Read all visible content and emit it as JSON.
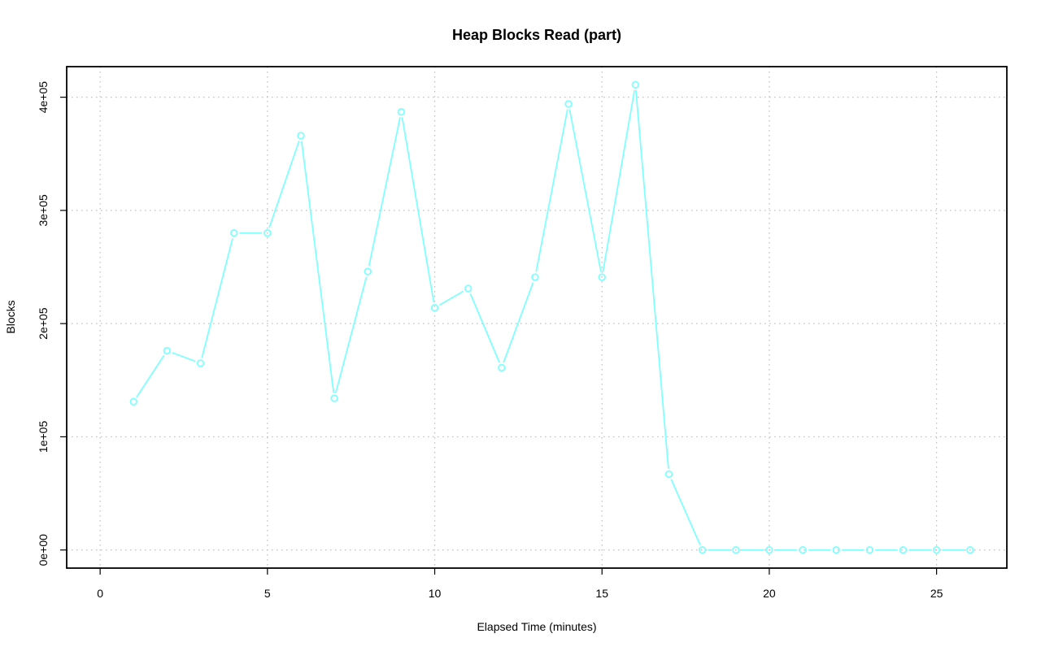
{
  "chart_data": {
    "type": "line",
    "title": "Heap Blocks Read (part)",
    "xlabel": "Elapsed Time (minutes)",
    "ylabel": "Blocks",
    "xlim": [
      -1,
      27.1
    ],
    "ylim": [
      -16000,
      427000
    ],
    "x_ticks": [
      0,
      5,
      10,
      15,
      20,
      25
    ],
    "x_tick_labels": [
      "0",
      "5",
      "10",
      "15",
      "20",
      "25"
    ],
    "y_ticks": [
      0,
      100000,
      200000,
      300000,
      400000
    ],
    "y_tick_labels": [
      "0e+00",
      "1e+05",
      "2e+05",
      "3e+05",
      "4e+05"
    ],
    "grid": true,
    "series_color": "#80ffff",
    "x": [
      1,
      2,
      3,
      4,
      5,
      6,
      7,
      8,
      9,
      10,
      11,
      12,
      13,
      14,
      15,
      16,
      17,
      18,
      19,
      20,
      21,
      22,
      23,
      24,
      25,
      26
    ],
    "values": [
      131000,
      176000,
      165000,
      280000,
      280000,
      366000,
      134000,
      246000,
      387000,
      214000,
      231000,
      161000,
      241000,
      394000,
      241000,
      411000,
      67000,
      0,
      0,
      0,
      0,
      0,
      0,
      0,
      0,
      0
    ]
  }
}
